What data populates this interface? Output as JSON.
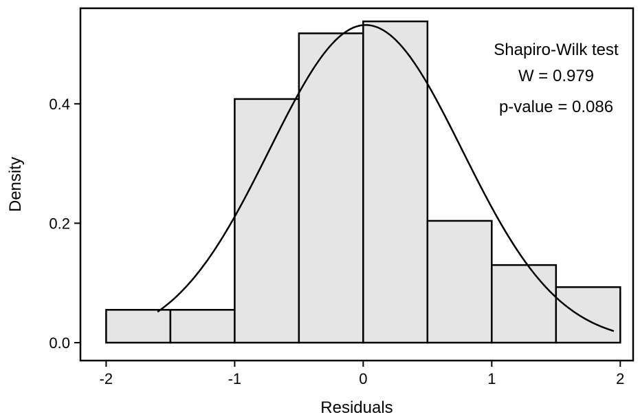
{
  "chart_data": {
    "type": "bar",
    "xlabel": "Residuals",
    "ylabel": "Density",
    "xlim": [
      -2.2,
      2.1
    ],
    "ylim": [
      -0.03,
      0.56
    ],
    "x_ticks": [
      -2,
      -1,
      0,
      1,
      2
    ],
    "x_tick_labels": [
      "-2",
      "-1",
      "0",
      "1",
      "2"
    ],
    "y_ticks": [
      0.0,
      0.2,
      0.4
    ],
    "y_tick_labels": [
      "0.0",
      "0.2",
      "0.4"
    ],
    "grid": false,
    "legend": "none",
    "bins": [
      {
        "x0": -2.0,
        "x1": -1.5,
        "density": 0.055
      },
      {
        "x0": -1.5,
        "x1": -1.0,
        "density": 0.055
      },
      {
        "x0": -1.0,
        "x1": -0.5,
        "density": 0.408
      },
      {
        "x0": -0.5,
        "x1": 0.0,
        "density": 0.518
      },
      {
        "x0": 0.0,
        "x1": 0.5,
        "density": 0.538
      },
      {
        "x0": 0.5,
        "x1": 1.0,
        "density": 0.204
      },
      {
        "x0": 1.0,
        "x1": 1.5,
        "density": 0.13
      },
      {
        "x0": 1.5,
        "x1": 2.0,
        "density": 0.093
      }
    ],
    "normal_curve": {
      "type": "line",
      "mean": 0.02,
      "sd": 0.75,
      "x_range": [
        -1.6,
        1.95
      ]
    },
    "annotation_lines": [
      "Shapiro-Wilk test",
      "W = 0.979",
      "p-value = 0.086"
    ],
    "colors": {
      "bar_fill": "#e5e5e5",
      "bar_stroke": "#000000",
      "curve": "#000000",
      "axis": "#000000"
    }
  }
}
